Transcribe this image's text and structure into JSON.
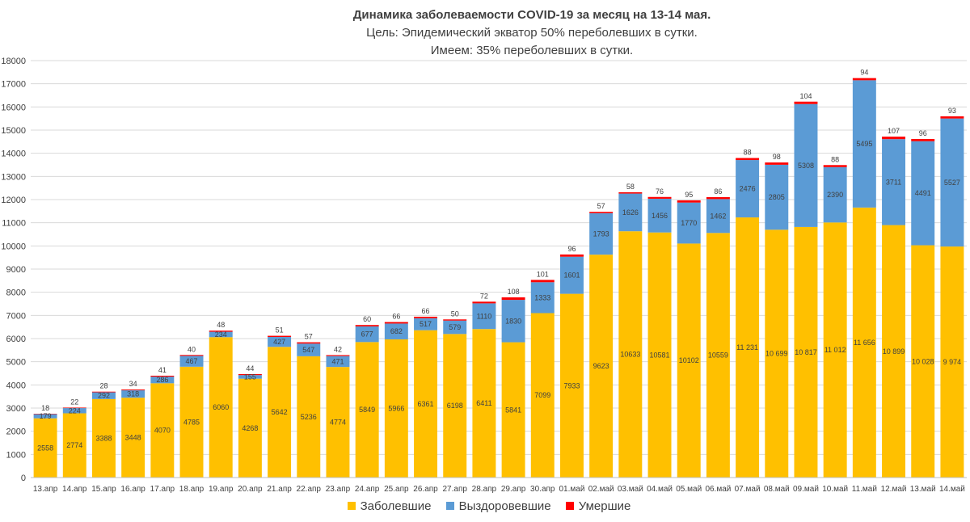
{
  "chart_data": {
    "type": "bar",
    "stacked": true,
    "title": "Динамика заболеваемости COVID-19 за месяц на 13-14 мая.",
    "subtitle_lines": [
      "Цель: Эпидемический экватор 50% переболевших в сутки.",
      "Имеем: 35% переболевших в сутки."
    ],
    "ylim": [
      0,
      18000
    ],
    "ytick_step": 1000,
    "categories": [
      "13.апр",
      "14.апр",
      "15.апр",
      "16.апр",
      "17.апр",
      "18.апр",
      "19.апр",
      "20.апр",
      "21.апр",
      "22.апр",
      "23.апр",
      "24.апр",
      "25.апр",
      "26.апр",
      "27.апр",
      "28.апр",
      "29.апр",
      "30.апр",
      "01.май",
      "02.май",
      "03.май",
      "04.май",
      "05.май",
      "06.май",
      "07.май",
      "08.май",
      "09.май",
      "10.май",
      "11.май",
      "12.май",
      "13.май",
      "14.май"
    ],
    "series": [
      {
        "name": "Заболевшие",
        "color": "#FFC000",
        "values": [
          2558,
          2774,
          3388,
          3448,
          4070,
          4785,
          6060,
          4268,
          5642,
          5236,
          4774,
          5849,
          5966,
          6361,
          6198,
          6411,
          5841,
          7099,
          7933,
          9623,
          10633,
          10581,
          10102,
          10559,
          11231,
          10699,
          10817,
          11012,
          11656,
          10899,
          10028,
          9974
        ],
        "labels": [
          "2558",
          "2774",
          "3388",
          "3448",
          "4070",
          "4785",
          "6060",
          "4268",
          "5642",
          "5236",
          "4774",
          "5849",
          "5966",
          "6361",
          "6198",
          "6411",
          "5841",
          "7099",
          "7933",
          "9623",
          "10633",
          "10581",
          "10102",
          "10559",
          "11 231",
          "10 699",
          "10 817",
          "11 012",
          "11 656",
          "10 899",
          "10 028",
          "9 974"
        ]
      },
      {
        "name": "Выздоровевшие",
        "color": "#5B9BD5",
        "values": [
          179,
          224,
          292,
          318,
          286,
          467,
          234,
          155,
          427,
          547,
          471,
          677,
          682,
          517,
          579,
          1110,
          1830,
          1333,
          1601,
          1793,
          1626,
          1456,
          1770,
          1462,
          2476,
          2805,
          5308,
          2390,
          5495,
          3711,
          4491,
          5527
        ],
        "labels": [
          "179",
          "224",
          "292",
          "318",
          "286",
          "467",
          "234",
          "155",
          "427",
          "547",
          "471",
          "677",
          "682",
          "517",
          "579",
          "1110",
          "1830",
          "1333",
          "1601",
          "1793",
          "1626",
          "1456",
          "1770",
          "1462",
          "2476",
          "2805",
          "5308",
          "2390",
          "5495",
          "3711",
          "4491",
          "5527"
        ]
      },
      {
        "name": "Умершие",
        "color": "#FF0000",
        "values": [
          18,
          22,
          28,
          34,
          41,
          40,
          48,
          44,
          51,
          57,
          42,
          60,
          66,
          66,
          50,
          72,
          108,
          101,
          96,
          57,
          58,
          76,
          95,
          86,
          88,
          98,
          104,
          88,
          94,
          107,
          96,
          93
        ],
        "labels": [
          "18",
          "22",
          "28",
          "34",
          "41",
          "40",
          "48",
          "44",
          "51",
          "57",
          "42",
          "60",
          "66",
          "66",
          "50",
          "72",
          "108",
          "101",
          "96",
          "57",
          "58",
          "76",
          "95",
          "86",
          "88",
          "98",
          "104",
          "88",
          "94",
          "107",
          "96",
          "93"
        ]
      }
    ]
  }
}
